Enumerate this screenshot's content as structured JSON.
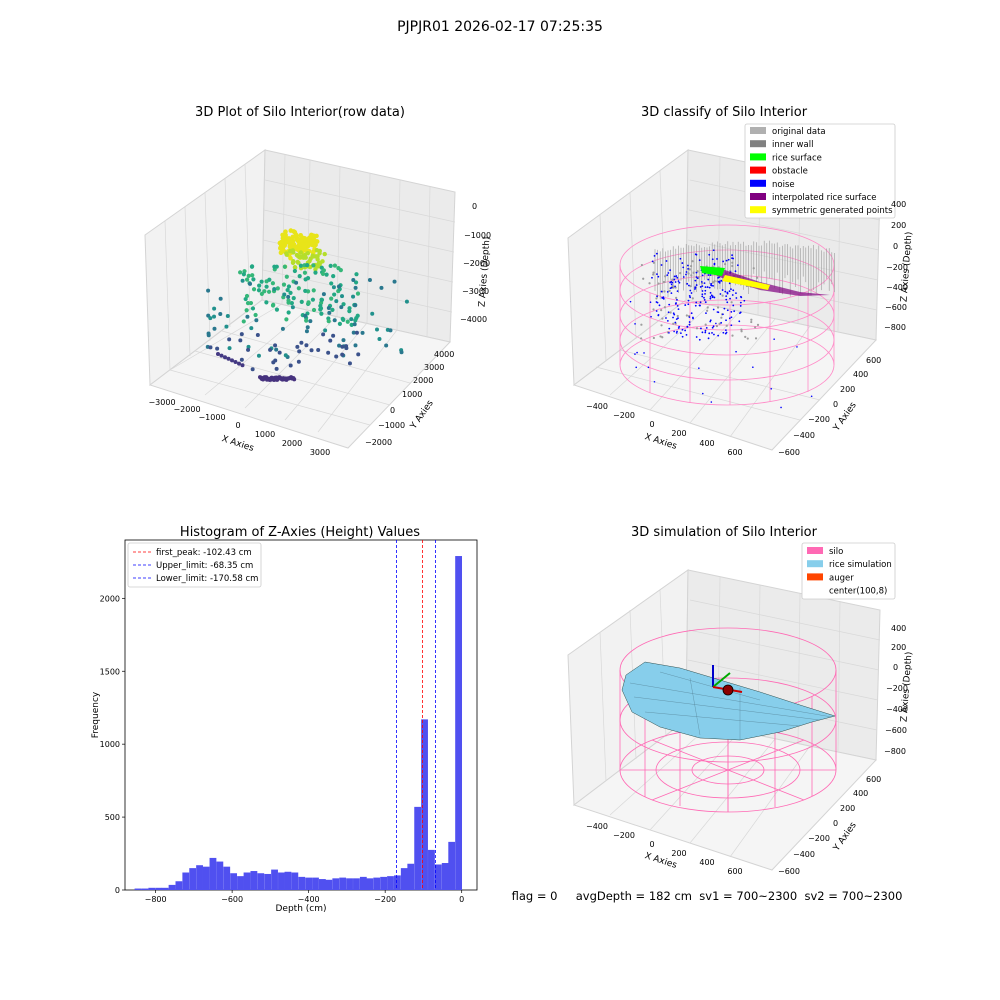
{
  "suptitle": "PJPJR01 2026-02-17 07:25:35",
  "footer": "flag = 0     avgDepth = 182 cm  sv1 = 700~2300  sv2 = 700~2300",
  "colors": {
    "histogram_bar": "#5050f0",
    "peak_line": "#ff0000",
    "limit_line": "#0000ff",
    "silo": "#ff69b4",
    "rice_simulation": "#87ceeb",
    "auger": "#ff4500",
    "viridis_dark": "#440154",
    "viridis_mid": "#21908d",
    "viridis_light": "#fde725"
  },
  "chart_data": [
    {
      "type": "scatter",
      "title": "3D Plot of Silo Interior(row data)",
      "xlabel": "X Axies",
      "ylabel": "Y Axies",
      "zlabel": "Z Axies (Depth)",
      "xticks": [
        "−3000",
        "−2000",
        "−1000",
        "0",
        "1000",
        "2000",
        "3000"
      ],
      "yticks": [
        "−2000",
        "−1000",
        "0",
        "1000",
        "2000",
        "3000",
        "4000"
      ],
      "zticks": [
        "−4000",
        "−3000",
        "−2000",
        "−1000",
        "0"
      ],
      "colormap": "viridis"
    },
    {
      "type": "scatter",
      "title": "3D classify of Silo Interior",
      "xlabel": "X Axies",
      "ylabel": "Y Axies",
      "zlabel": "Z Axies (Depth)",
      "xticks": [
        "−400",
        "−200",
        "0",
        "200",
        "400",
        "600"
      ],
      "yticks": [
        "−600",
        "−400",
        "−200",
        "0",
        "200",
        "400",
        "600"
      ],
      "zticks": [
        "−800",
        "−600",
        "−400",
        "−200",
        "0",
        "200",
        "400"
      ],
      "legend_position": "top-right",
      "legend": [
        {
          "label": "original data",
          "color": "#b0b0b0"
        },
        {
          "label": "inner wall",
          "color": "#808080"
        },
        {
          "label": "rice surface",
          "color": "#00ff00"
        },
        {
          "label": "obstacle",
          "color": "#ff0000"
        },
        {
          "label": "noise",
          "color": "#0000ff"
        },
        {
          "label": "interpolated rice surface",
          "color": "#800080"
        },
        {
          "label": "symmetric generated points",
          "color": "#ffff00"
        }
      ]
    },
    {
      "type": "bar",
      "title": "Histogram of Z-Axies (Height) Values",
      "xlabel": "Depth (cm)",
      "ylabel": "Frequency",
      "xlim": [
        -880,
        40
      ],
      "ylim": [
        0,
        2400
      ],
      "xticks": [
        -800,
        -600,
        -400,
        -200,
        0
      ],
      "xtick_labels": [
        "−800",
        "−600",
        "−400",
        "−200",
        "0"
      ],
      "yticks": [
        0,
        500,
        1000,
        1500,
        2000
      ],
      "bin_width": 17.8,
      "bin_starts": [
        -855,
        -837,
        -819,
        -801,
        -784,
        -766,
        -748,
        -730,
        -712,
        -694,
        -677,
        -659,
        -641,
        -623,
        -605,
        -587,
        -570,
        -552,
        -534,
        -516,
        -498,
        -480,
        -463,
        -445,
        -427,
        -409,
        -391,
        -373,
        -356,
        -338,
        -320,
        -302,
        -284,
        -266,
        -249,
        -231,
        -213,
        -195,
        -177,
        -159,
        -142,
        -124,
        -106,
        -88,
        -70,
        -52,
        -35,
        -17
      ],
      "values": [
        10,
        10,
        15,
        15,
        15,
        35,
        60,
        120,
        150,
        170,
        160,
        220,
        195,
        160,
        115,
        95,
        120,
        130,
        115,
        110,
        140,
        120,
        125,
        120,
        90,
        85,
        85,
        75,
        70,
        80,
        85,
        80,
        80,
        90,
        80,
        85,
        90,
        95,
        100,
        150,
        180,
        570,
        1170,
        275,
        175,
        185,
        330,
        2290
      ],
      "vlines": [
        {
          "label": "first_peak: -102.43 cm",
          "x": -102.43,
          "color": "#ff0000"
        },
        {
          "label": "Upper_limit: -68.35 cm",
          "x": -68.35,
          "color": "#0000ff"
        },
        {
          "label": "Lower_limit: -170.58 cm",
          "x": -170.58,
          "color": "#0000ff"
        }
      ],
      "legend_position": "top-left"
    },
    {
      "type": "area",
      "title": "3D simulation of Silo Interior",
      "xlabel": "X Axies",
      "ylabel": "Y Axies",
      "zlabel": "Z Axies (Depth)",
      "xticks": [
        "−400",
        "−200",
        "0",
        "200",
        "400",
        "600"
      ],
      "yticks": [
        "−600",
        "−400",
        "−200",
        "0",
        "200",
        "400",
        "600"
      ],
      "zticks": [
        "−800",
        "−600",
        "−400",
        "−200",
        "0",
        "200",
        "400"
      ],
      "legend_position": "top-right",
      "legend": [
        {
          "label": "silo",
          "color": "#ff69b4"
        },
        {
          "label": "rice simulation",
          "color": "#87ceeb"
        },
        {
          "label": "auger",
          "color": "#ff4500"
        },
        {
          "label": "center(100,8)",
          "color": ""
        }
      ]
    }
  ]
}
